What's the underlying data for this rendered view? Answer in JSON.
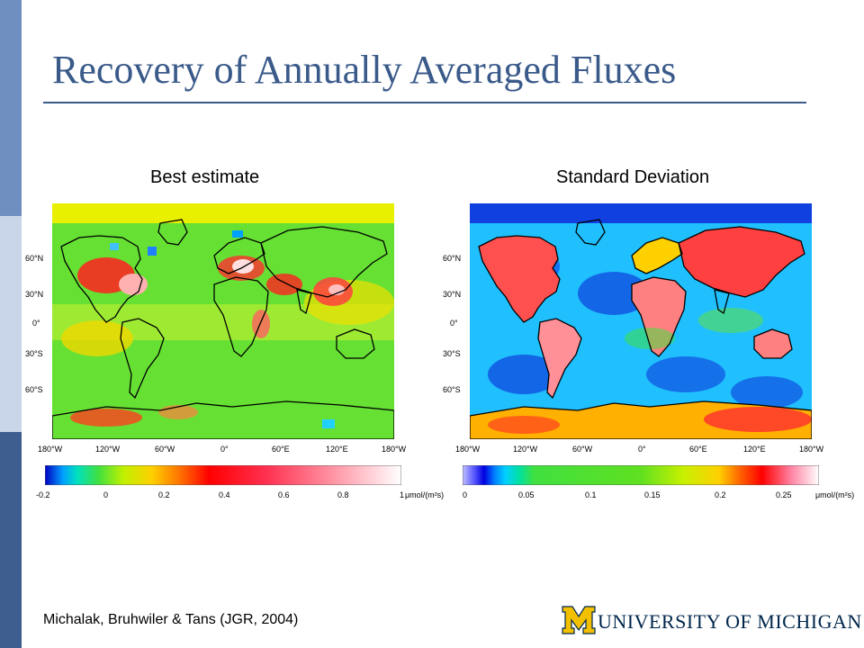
{
  "slide": {
    "title": "Recovery of Annually Averaged Fluxes",
    "citation": "Michalak, Bruhwiler & Tans (JGR, 2004)",
    "logo_text": "UNIVERSITY OF MICHIGAN",
    "colors": {
      "title": "#3a5a8a",
      "logo_maize": "#f2c000",
      "logo_blue": "#00274c"
    }
  },
  "axes": {
    "lat_labels": [
      "60°N",
      "30°N",
      "0°",
      "30°S",
      "60°S"
    ],
    "lon_labels": [
      "180°W",
      "120°W",
      "60°W",
      "0°",
      "60°E",
      "120°E",
      "180°W"
    ]
  },
  "panels": [
    {
      "title": "Best estimate",
      "colorbar": {
        "labels": [
          "-0.2",
          "0",
          "0.2",
          "0.4",
          "0.6",
          "0.8",
          "1"
        ],
        "unit": "μmol/(m²s)"
      }
    },
    {
      "title": "Standard Deviation",
      "colorbar": {
        "labels": [
          "0",
          "0.05",
          "0.1",
          "0.15",
          "0.2",
          "0.25"
        ],
        "unit": "μmol/(m²s)"
      }
    }
  ]
}
